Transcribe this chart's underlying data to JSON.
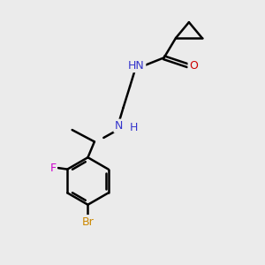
{
  "bg_color": "#ebebeb",
  "atom_colors": {
    "C": "#000000",
    "N": "#3333cc",
    "O": "#cc0000",
    "F": "#cc00cc",
    "Br": "#cc8800",
    "H": "#008888"
  },
  "bond_color": "#000000",
  "bond_width": 1.8,
  "label_fontsize": 9,
  "label_bg": "#ebebeb"
}
